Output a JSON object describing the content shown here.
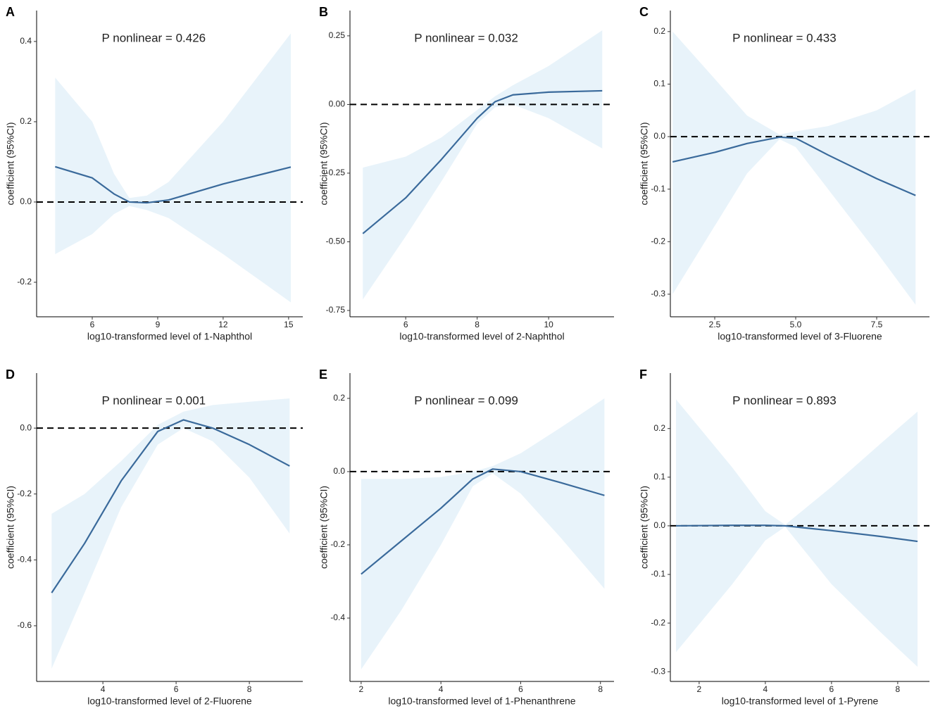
{
  "chart_data": [
    {
      "type": "line",
      "panel": "A",
      "annotation": "P nonlinear = 0.426",
      "xlabel": "log10-transformed level of 1-Naphthol",
      "ylabel": "coefficient (95%CI)",
      "x": [
        4.3,
        6,
        7,
        7.7,
        8.5,
        9.5,
        12,
        15.1
      ],
      "values": [
        0.088,
        0.06,
        0.02,
        0.0,
        -0.002,
        0.005,
        0.045,
        0.087
      ],
      "lower": [
        -0.13,
        -0.08,
        -0.03,
        -0.01,
        -0.02,
        -0.04,
        -0.13,
        -0.25
      ],
      "upper": [
        0.31,
        0.2,
        0.07,
        0.01,
        0.016,
        0.05,
        0.2,
        0.42
      ],
      "color": "#3a6a9b",
      "band_color": "#e8f3fa",
      "reference_line": 0,
      "xlim": [
        3.45,
        15.65
      ],
      "ylim": [
        -0.286,
        0.477
      ],
      "xticks": [
        6,
        9,
        12,
        15
      ],
      "yticks": [
        -0.2,
        {
          "value": 0,
          "label": "0.0"
        },
        0.2,
        0.4
      ]
    },
    {
      "type": "line",
      "panel": "B",
      "annotation": "P nonlinear = 0.032",
      "xlabel": "log10-transformed level of 2-Naphthol",
      "ylabel": "coefficient (95%CI)",
      "x": [
        4.8,
        6,
        7,
        8,
        8.5,
        9,
        10,
        11.5
      ],
      "values": [
        -0.47,
        -0.34,
        -0.2,
        -0.05,
        0.01,
        0.035,
        0.045,
        0.05
      ],
      "lower": [
        -0.71,
        -0.48,
        -0.28,
        -0.07,
        -0.01,
        0.0,
        -0.05,
        -0.16
      ],
      "upper": [
        -0.23,
        -0.19,
        -0.12,
        -0.02,
        0.03,
        0.07,
        0.14,
        0.27
      ],
      "color": "#3a6a9b",
      "band_color": "#e8f3fa",
      "reference_line": 0,
      "xlim": [
        4.44,
        11.83
      ],
      "ylim": [
        -0.773,
        0.342
      ],
      "xticks": [
        6,
        8,
        10
      ],
      "yticks": [
        {
          "value": -0.75,
          "label": "-0.75"
        },
        {
          "value": -0.5,
          "label": "-0.50"
        },
        -0.25,
        {
          "value": 0,
          "label": "0.00"
        },
        0.25
      ]
    },
    {
      "type": "line",
      "panel": "C",
      "annotation": "P nonlinear = 0.433",
      "xlabel": "log10-transformed level of 3-Fluorene",
      "ylabel": "coefficient (95%CI)",
      "x": [
        1.2,
        2.5,
        3.5,
        4.5,
        5,
        6,
        7.5,
        8.7
      ],
      "values": [
        -0.048,
        -0.03,
        -0.013,
        -0.001,
        -0.003,
        -0.035,
        -0.08,
        -0.112
      ],
      "lower": [
        -0.3,
        -0.17,
        -0.07,
        -0.005,
        -0.02,
        -0.1,
        -0.22,
        -0.32
      ],
      "upper": [
        0.2,
        0.11,
        0.04,
        0.004,
        0.01,
        0.02,
        0.05,
        0.09
      ],
      "color": "#3a6a9b",
      "band_color": "#e8f3fa",
      "reference_line": 0,
      "xlim": [
        1.13,
        9.13
      ],
      "ylim": [
        -0.343,
        0.24
      ],
      "xticks": [
        2.5,
        {
          "value": 5,
          "label": "5.0"
        },
        7.5
      ],
      "yticks": [
        -0.3,
        -0.2,
        -0.1,
        {
          "value": 0,
          "label": "0.0"
        },
        0.1,
        0.2
      ]
    },
    {
      "type": "line",
      "panel": "D",
      "annotation": "P nonlinear = 0.001",
      "xlabel": "log10-transformed level of 2-Fluorene",
      "ylabel": "coefficient (95%CI)",
      "x": [
        2.6,
        3.5,
        4.5,
        5.5,
        6.2,
        7,
        8,
        9.1
      ],
      "values": [
        -0.5,
        -0.35,
        -0.16,
        -0.01,
        0.025,
        0.0,
        -0.05,
        -0.115
      ],
      "lower": [
        -0.73,
        -0.5,
        -0.24,
        -0.05,
        0.0,
        -0.04,
        -0.15,
        -0.32
      ],
      "upper": [
        -0.26,
        -0.2,
        -0.1,
        0.01,
        0.05,
        0.07,
        0.08,
        0.09
      ],
      "color": "#3a6a9b",
      "band_color": "#e8f3fa",
      "reference_line": 0,
      "xlim": [
        2.19,
        9.46
      ],
      "ylim": [
        -0.769,
        0.167
      ],
      "xticks": [
        4,
        6,
        8
      ],
      "yticks": [
        -0.6,
        -0.4,
        -0.2,
        {
          "value": 0,
          "label": "0.0"
        }
      ]
    },
    {
      "type": "line",
      "panel": "E",
      "annotation": "P nonlinear = 0.099",
      "xlabel": "log10-transformed level of 1-Phenanthrene",
      "ylabel": "coefficient (95%CI)",
      "x": [
        2,
        3,
        4,
        4.8,
        5.3,
        6,
        7,
        8.1
      ],
      "values": [
        -0.28,
        -0.19,
        -0.1,
        -0.02,
        0.007,
        0.0,
        -0.03,
        -0.065
      ],
      "lower": [
        -0.54,
        -0.38,
        -0.2,
        -0.04,
        -0.005,
        -0.06,
        -0.18,
        -0.32
      ],
      "upper": [
        -0.02,
        -0.02,
        -0.015,
        0.0,
        0.015,
        0.05,
        0.12,
        0.2
      ],
      "color": "#3a6a9b",
      "band_color": "#e8f3fa",
      "reference_line": 0,
      "xlim": [
        1.72,
        8.34
      ],
      "ylim": [
        -0.573,
        0.269
      ],
      "xticks": [
        2,
        4,
        6,
        8
      ],
      "yticks": [
        -0.4,
        -0.2,
        {
          "value": 0,
          "label": "0.0"
        },
        0.2
      ]
    },
    {
      "type": "line",
      "panel": "F",
      "annotation": "P nonlinear = 0.893",
      "xlabel": "log10-transformed level of 1-Pyrene",
      "ylabel": "coefficient (95%CI)",
      "x": [
        1.3,
        3,
        4,
        4.6,
        6,
        7.5,
        8.6
      ],
      "values": [
        0.0,
        0.001,
        0.001,
        0.0,
        -0.01,
        -0.022,
        -0.032
      ],
      "lower": [
        -0.26,
        -0.12,
        -0.03,
        -0.002,
        -0.12,
        -0.22,
        -0.29
      ],
      "upper": [
        0.26,
        0.12,
        0.03,
        0.002,
        0.08,
        0.17,
        0.235
      ],
      "color": "#3a6a9b",
      "band_color": "#e8f3fa",
      "reference_line": 0,
      "xlim": [
        1.13,
        8.96
      ],
      "ylim": [
        -0.32,
        0.314
      ],
      "xticks": [
        2,
        4,
        6,
        8
      ],
      "yticks": [
        -0.3,
        -0.2,
        -0.1,
        {
          "value": 0,
          "label": "0.0"
        },
        0.1,
        0.2
      ]
    }
  ]
}
